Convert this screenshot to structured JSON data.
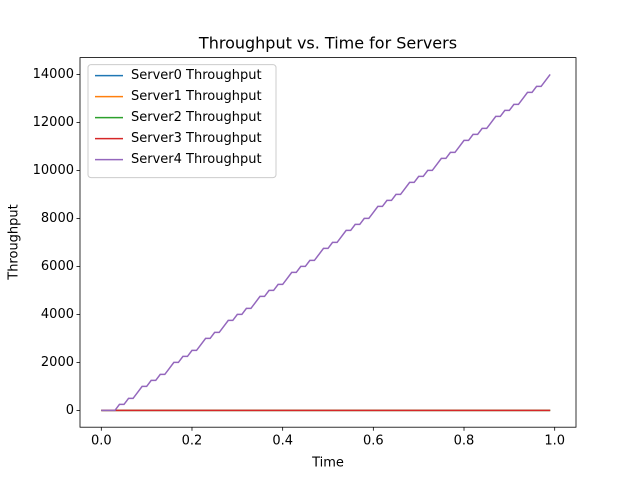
{
  "chart_data": {
    "type": "line",
    "title": "Throughput vs. Time for Servers",
    "x_label": "Time",
    "y_label": "Throughput",
    "x": [
      0,
      0.01,
      0.02,
      0.03,
      0.04,
      0.05,
      0.06,
      0.07,
      0.08,
      0.09,
      0.1,
      0.11,
      0.12,
      0.13,
      0.14,
      0.15,
      0.16,
      0.17,
      0.18,
      0.19,
      0.2,
      0.21,
      0.22,
      0.23,
      0.24,
      0.25,
      0.26,
      0.27,
      0.28,
      0.29,
      0.3,
      0.31,
      0.32,
      0.33,
      0.34,
      0.35,
      0.36,
      0.37,
      0.38,
      0.39,
      0.4,
      0.41,
      0.42,
      0.43,
      0.44,
      0.45,
      0.46,
      0.47,
      0.48,
      0.49,
      0.5,
      0.51,
      0.52,
      0.53,
      0.54,
      0.55,
      0.56,
      0.57,
      0.58,
      0.59,
      0.6,
      0.61,
      0.62,
      0.63,
      0.64,
      0.65,
      0.66,
      0.67,
      0.68,
      0.69,
      0.7,
      0.71,
      0.72,
      0.73,
      0.74,
      0.75,
      0.76,
      0.77,
      0.78,
      0.79,
      0.8,
      0.81,
      0.82,
      0.83,
      0.84,
      0.85,
      0.86,
      0.87,
      0.88,
      0.89,
      0.9,
      0.91,
      0.92,
      0.93,
      0.94,
      0.95,
      0.96,
      0.97,
      0.98,
      0.99
    ],
    "series": [
      {
        "name": "Server0 Throughput",
        "color": "#1f77b4",
        "values": [
          0,
          0,
          0,
          0,
          0,
          0,
          0,
          0,
          0,
          0,
          0,
          0,
          0,
          0,
          0,
          0,
          0,
          0,
          0,
          0,
          0,
          0,
          0,
          0,
          0,
          0,
          0,
          0,
          0,
          0,
          0,
          0,
          0,
          0,
          0,
          0,
          0,
          0,
          0,
          0,
          0,
          0,
          0,
          0,
          0,
          0,
          0,
          0,
          0,
          0,
          0,
          0,
          0,
          0,
          0,
          0,
          0,
          0,
          0,
          0,
          0,
          0,
          0,
          0,
          0,
          0,
          0,
          0,
          0,
          0,
          0,
          0,
          0,
          0,
          0,
          0,
          0,
          0,
          0,
          0,
          0,
          0,
          0,
          0,
          0,
          0,
          0,
          0,
          0,
          0,
          0,
          0,
          0,
          0,
          0,
          0,
          0,
          0,
          0,
          0
        ]
      },
      {
        "name": "Server1 Throughput",
        "color": "#ff7f0e",
        "values": [
          0,
          0,
          0,
          0,
          0,
          0,
          0,
          0,
          0,
          0,
          0,
          0,
          0,
          0,
          0,
          0,
          0,
          0,
          0,
          0,
          0,
          0,
          0,
          0,
          0,
          0,
          0,
          0,
          0,
          0,
          0,
          0,
          0,
          0,
          0,
          0,
          0,
          0,
          0,
          0,
          0,
          0,
          0,
          0,
          0,
          0,
          0,
          0,
          0,
          0,
          0,
          0,
          0,
          0,
          0,
          0,
          0,
          0,
          0,
          0,
          0,
          0,
          0,
          0,
          0,
          0,
          0,
          0,
          0,
          0,
          0,
          0,
          0,
          0,
          0,
          0,
          0,
          0,
          0,
          0,
          0,
          0,
          0,
          0,
          0,
          0,
          0,
          0,
          0,
          0,
          0,
          0,
          0,
          0,
          0,
          0,
          0,
          0,
          0,
          0
        ]
      },
      {
        "name": "Server2 Throughput",
        "color": "#2ca02c",
        "values": [
          0,
          0,
          0,
          0,
          0,
          0,
          0,
          0,
          0,
          0,
          0,
          0,
          0,
          0,
          0,
          0,
          0,
          0,
          0,
          0,
          0,
          0,
          0,
          0,
          0,
          0,
          0,
          0,
          0,
          0,
          0,
          0,
          0,
          0,
          0,
          0,
          0,
          0,
          0,
          0,
          0,
          0,
          0,
          0,
          0,
          0,
          0,
          0,
          0,
          0,
          0,
          0,
          0,
          0,
          0,
          0,
          0,
          0,
          0,
          0,
          0,
          0,
          0,
          0,
          0,
          0,
          0,
          0,
          0,
          0,
          0,
          0,
          0,
          0,
          0,
          0,
          0,
          0,
          0,
          0,
          0,
          0,
          0,
          0,
          0,
          0,
          0,
          0,
          0,
          0,
          0,
          0,
          0,
          0,
          0,
          0,
          0,
          0,
          0,
          0
        ]
      },
      {
        "name": "Server3 Throughput",
        "color": "#d62728",
        "values": [
          0,
          0,
          0,
          0,
          0,
          0,
          0,
          0,
          0,
          0,
          0,
          0,
          0,
          0,
          0,
          0,
          0,
          0,
          0,
          0,
          0,
          0,
          0,
          0,
          0,
          0,
          0,
          0,
          0,
          0,
          0,
          0,
          0,
          0,
          0,
          0,
          0,
          0,
          0,
          0,
          0,
          0,
          0,
          0,
          0,
          0,
          0,
          0,
          0,
          0,
          0,
          0,
          0,
          0,
          0,
          0,
          0,
          0,
          0,
          0,
          0,
          0,
          0,
          0,
          0,
          0,
          0,
          0,
          0,
          0,
          0,
          0,
          0,
          0,
          0,
          0,
          0,
          0,
          0,
          0,
          0,
          0,
          0,
          0,
          0,
          0,
          0,
          0,
          0,
          0,
          0,
          0,
          0,
          0,
          0,
          0,
          0,
          0,
          0,
          0
        ]
      },
      {
        "name": "Server4 Throughput",
        "color": "#9467bd",
        "values": [
          0,
          0,
          0,
          0,
          250,
          250,
          500,
          500,
          750,
          1000,
          1000,
          1250,
          1250,
          1500,
          1500,
          1750,
          2000,
          2000,
          2250,
          2250,
          2500,
          2500,
          2750,
          3000,
          3000,
          3250,
          3250,
          3500,
          3750,
          3750,
          4000,
          4000,
          4250,
          4250,
          4500,
          4750,
          4750,
          5000,
          5000,
          5250,
          5250,
          5500,
          5750,
          5750,
          6000,
          6000,
          6250,
          6250,
          6500,
          6750,
          6750,
          7000,
          7000,
          7250,
          7500,
          7500,
          7750,
          7750,
          8000,
          8000,
          8250,
          8500,
          8500,
          8750,
          8750,
          9000,
          9000,
          9250,
          9500,
          9500,
          9750,
          9750,
          10000,
          10000,
          10250,
          10500,
          10500,
          10750,
          10750,
          11000,
          11250,
          11250,
          11500,
          11500,
          11750,
          11750,
          12000,
          12250,
          12250,
          12500,
          12500,
          12750,
          12750,
          13000,
          13250,
          13250,
          13500,
          13500,
          13750,
          14000
        ]
      }
    ],
    "xlim": [
      -0.047,
      1.047
    ],
    "ylim": [
      -700,
      14700
    ],
    "xticks": [
      {
        "value": 0,
        "label": "0.0"
      },
      0.2,
      0.4,
      0.6,
      0.8,
      {
        "value": 1,
        "label": "1.0"
      }
    ],
    "yticks": [
      0,
      2000,
      4000,
      6000,
      8000,
      10000,
      12000,
      14000
    ],
    "grid": false,
    "legend": "upper left"
  }
}
